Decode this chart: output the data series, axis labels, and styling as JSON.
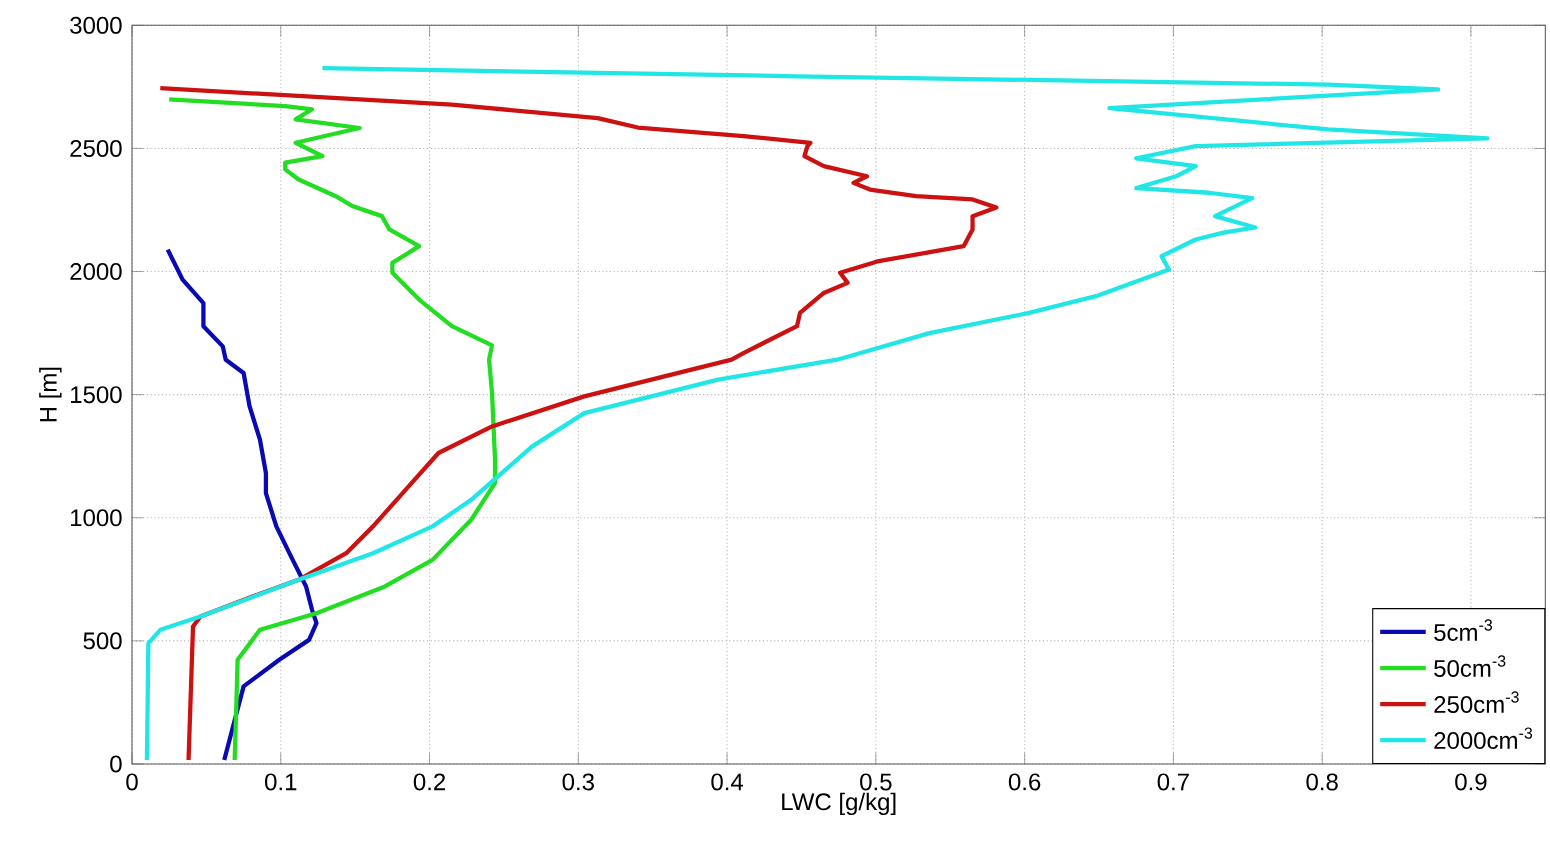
{
  "chart_data": {
    "type": "line",
    "xlabel": "LWC [g/kg]",
    "ylabel": "H [m]",
    "xlim": [
      0,
      0.95
    ],
    "xticks": [
      0,
      0.1,
      0.2,
      0.3,
      0.4,
      0.5,
      0.6,
      0.7,
      0.8,
      0.9
    ],
    "ylim": [
      0,
      3000
    ],
    "yticks": [
      0,
      500,
      1000,
      1500,
      2000,
      2500,
      3000
    ],
    "grid": true,
    "legend": "bottom right",
    "marker": "none",
    "line_style": "solid",
    "series": [
      {
        "name": "5cm$^{-3}$",
        "color": "#0a0ab4",
        "x": [
          0.062,
          0.075,
          0.099,
          0.119,
          0.124,
          0.121,
          0.117,
          0.108,
          0.097,
          0.09,
          0.09,
          0.086,
          0.079,
          0.075,
          0.063,
          0.061,
          0.048,
          0.048,
          0.034,
          0.024
        ],
        "values": [
          16,
          315,
          423,
          504,
          572,
          626,
          721,
          829,
          965,
          1100,
          1181,
          1317,
          1453,
          1588,
          1642,
          1696,
          1778,
          1872,
          1967,
          2089
        ]
      },
      {
        "name": "50cm$^{-3}$",
        "color": "#22dd22",
        "x": [
          0.069,
          0.071,
          0.086,
          0.124,
          0.17,
          0.202,
          0.228,
          0.244,
          0.244,
          0.243,
          0.242,
          0.24,
          0.242,
          0.215,
          0.193,
          0.175,
          0.175,
          0.193,
          0.173,
          0.168,
          0.148,
          0.137,
          0.112,
          0.103,
          0.103,
          0.128,
          0.11,
          0.153,
          0.11,
          0.121,
          0.103,
          0.025
        ],
        "values": [
          16,
          423,
          545,
          612,
          721,
          829,
          992,
          1141,
          1236,
          1371,
          1507,
          1642,
          1700,
          1778,
          1886,
          1995,
          2035,
          2103,
          2171,
          2225,
          2266,
          2306,
          2374,
          2415,
          2442,
          2469,
          2523,
          2583,
          2618,
          2659,
          2672,
          2699
        ]
      },
      {
        "name": "250cm$^{-3}$",
        "color": "#cc1111",
        "x": [
          0.038,
          0.041,
          0.046,
          0.081,
          0.112,
          0.144,
          0.162,
          0.184,
          0.206,
          0.242,
          0.304,
          0.403,
          0.411,
          0.447,
          0.449,
          0.465,
          0.481,
          0.476,
          0.501,
          0.559,
          0.565,
          0.565,
          0.581,
          0.565,
          0.527,
          0.496,
          0.485,
          0.494,
          0.465,
          0.452,
          0.454,
          0.456,
          0.411,
          0.34,
          0.313,
          0.215,
          0.019
        ],
        "values": [
          16,
          558,
          599,
          680,
          748,
          856,
          965,
          1114,
          1263,
          1371,
          1493,
          1642,
          1669,
          1778,
          1832,
          1913,
          1954,
          1995,
          2041,
          2103,
          2171,
          2225,
          2260,
          2293,
          2306,
          2333,
          2360,
          2387,
          2428,
          2469,
          2509,
          2523,
          2550,
          2585,
          2623,
          2678,
          2745
        ]
      },
      {
        "name": "2000cm$^{-3}$",
        "color": "#22e6e6",
        "x": [
          0.01,
          0.011,
          0.019,
          0.046,
          0.112,
          0.162,
          0.202,
          0.228,
          0.246,
          0.269,
          0.304,
          0.394,
          0.474,
          0.536,
          0.603,
          0.648,
          0.697,
          0.692,
          0.715,
          0.733,
          0.755,
          0.728,
          0.753,
          0.724,
          0.675,
          0.702,
          0.715,
          0.675,
          0.715,
          0.911,
          0.804,
          0.657,
          0.878,
          0.804,
          0.447,
          0.128
        ],
        "values": [
          16,
          490,
          545,
          599,
          748,
          856,
          965,
          1073,
          1168,
          1290,
          1425,
          1561,
          1642,
          1750,
          1832,
          1900,
          2008,
          2062,
          2130,
          2157,
          2179,
          2225,
          2298,
          2320,
          2339,
          2387,
          2428,
          2460,
          2509,
          2541,
          2577,
          2664,
          2740,
          2759,
          2793,
          2826
        ]
      }
    ]
  }
}
